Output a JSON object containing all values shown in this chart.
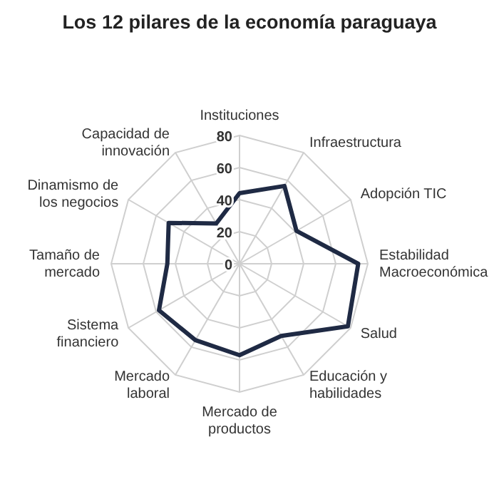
{
  "chart_data": {
    "type": "radar",
    "title": "Los 12 pilares de la economía paraguaya",
    "categories": [
      "Instituciones",
      "Infraestructura",
      "Adopción TIC",
      "Estabilidad Macroeconómica",
      "Salud",
      "Educación y habilidades",
      "Mercado de productos",
      "Mercado laboral",
      "Sistema financiero",
      "Tamaño de mercado",
      "Dinamismo de los negocios",
      "Capacidad de innovación"
    ],
    "series": [
      {
        "color": "#1f2a44",
        "values": [
          44,
          56,
          41,
          74,
          78,
          52,
          57,
          55,
          58,
          45,
          51,
          29
        ]
      }
    ],
    "ylim": [
      0,
      80
    ],
    "yticks": [
      0,
      20,
      40,
      60,
      80
    ],
    "grid": true,
    "marker": "none",
    "line_style": "solid"
  }
}
